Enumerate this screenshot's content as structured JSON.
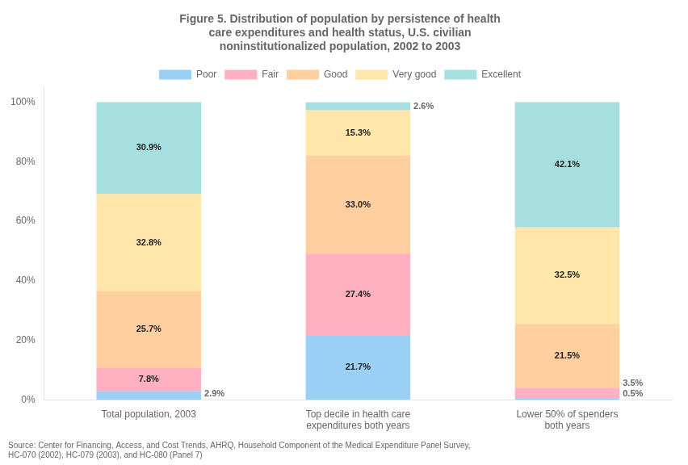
{
  "chart_data": {
    "type": "bar",
    "title": "Figure 5. Distribution of population by persistence of health\ncare expenditures and health status, U.S. civilian\nnoninstitutionalized population, 2002 to 2003",
    "categories": [
      "Total population, 2003",
      "Top decile in health care\nexpenditures both years",
      "Lower 50% of spenders\nboth years"
    ],
    "series": [
      {
        "name": "Poor",
        "values": [
          2.9,
          21.7,
          0.5
        ],
        "value_labels": [
          "2.9%",
          "21.7%",
          "0.5%"
        ]
      },
      {
        "name": "Fair",
        "values": [
          7.8,
          27.4,
          3.5
        ],
        "value_labels": [
          "7.8%",
          "27.4%",
          "3.5%"
        ]
      },
      {
        "name": "Good",
        "values": [
          25.7,
          33.0,
          21.5
        ],
        "value_labels": [
          "25.7%",
          "33.0%",
          "21.5%"
        ]
      },
      {
        "name": "Very good",
        "values": [
          32.8,
          15.3,
          32.5
        ],
        "value_labels": [
          "32.8%",
          "15.3%",
          "32.5%"
        ]
      },
      {
        "name": "Excellent",
        "values": [
          30.9,
          2.6,
          42.1
        ],
        "value_labels": [
          "30.9%",
          "2.6%",
          "42.1%"
        ]
      }
    ],
    "ylim": [
      0,
      105
    ],
    "yticks": [
      {
        "value": 0,
        "label": "0%"
      },
      {
        "value": 20,
        "label": "20%"
      },
      {
        "value": 40,
        "label": "40%"
      },
      {
        "value": 60,
        "label": "60%"
      },
      {
        "value": 80,
        "label": "80%"
      },
      {
        "value": 100,
        "label": "100%"
      }
    ],
    "stacked": true,
    "data_labels": true,
    "grid": false,
    "legend": "top",
    "annotations": [
      "Source: Center for Financing, Access, and Cost Trends, AHRQ, Household Component of the Medical Expenditure Panel Survey,",
      "HC-070 (2002), HC-079 (2003), and HC-080 (Panel 7)"
    ]
  }
}
